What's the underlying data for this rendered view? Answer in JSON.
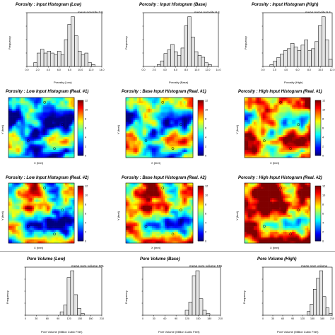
{
  "colors": {
    "bar_fill": "#e4e4e4",
    "bar_stroke": "#000000",
    "separator": "#9a9a9a"
  },
  "colorbar": {
    "ticks": [
      "12",
      "10",
      "8",
      "6",
      "4",
      "2",
      "0"
    ]
  },
  "chart_data": [
    {
      "id": "hist-low",
      "type": "bar",
      "title": "Porosity : Input Histogram (Low)",
      "annotation": "mean porosity 7.5",
      "xlabel": "Porosity (Low)",
      "ylabel": "Frequency",
      "xticks": [
        "0.0",
        "2.0",
        "4.0",
        "6.0",
        "8.0",
        "10.0",
        "12.0",
        "14.0"
      ],
      "values": [
        0,
        0,
        2,
        7,
        9,
        7,
        8,
        7,
        6,
        8,
        6,
        14,
        22,
        26,
        16,
        8,
        6,
        7,
        2,
        1,
        0,
        0
      ]
    },
    {
      "id": "hist-base",
      "type": "bar",
      "title": "Porosity : Input Histogram (Base)",
      "annotation": "mean porosity 8.4",
      "xlabel": "Porosity (Base)",
      "ylabel": "Frequency",
      "xticks": [
        "0.0",
        "2.0",
        "4.0",
        "6.0",
        "8.0",
        "10.0",
        "12.0",
        "14.0"
      ],
      "values": [
        0,
        0,
        0,
        0,
        1,
        3,
        7,
        9,
        12,
        8,
        6,
        10,
        22,
        27,
        16,
        8,
        6,
        5,
        2,
        1,
        0,
        0
      ]
    },
    {
      "id": "hist-high",
      "type": "bar",
      "title": "Porosity : Input Histogram (High)",
      "annotation": "mean porosity 9.4",
      "xlabel": "Porosity (High)",
      "ylabel": "Frequency",
      "xticks": [
        "0.0",
        "2.0",
        "4.0",
        "6.0",
        "8.0",
        "10.0",
        "12.0"
      ],
      "values": [
        0,
        0,
        1,
        3,
        5,
        7,
        9,
        10,
        13,
        11,
        9,
        12,
        15,
        9,
        10,
        14,
        23,
        28,
        15,
        4
      ]
    },
    {
      "id": "map-low-1",
      "type": "heatmap",
      "title": "Porosity : Low Input Histogram (Real. #1)",
      "xlabel": "X (feet)",
      "ylabel": "Y (feet)",
      "seed": 11,
      "bias": -0.1
    },
    {
      "id": "map-base-1",
      "type": "heatmap",
      "title": "Porosity : Base Input Histogram (Real. #1)",
      "xlabel": "X (feet)",
      "ylabel": "Y (feet)",
      "seed": 11,
      "bias": 0.05
    },
    {
      "id": "map-high-1",
      "type": "heatmap",
      "title": "Porosity : High Input Histogram (Real. #1)",
      "xlabel": "X (feet)",
      "ylabel": "Y (feet)",
      "seed": 11,
      "bias": 0.28
    },
    {
      "id": "map-low-2",
      "type": "heatmap",
      "title": "Porosity : Low Input Histogram (Real. #2)",
      "xlabel": "X (feet)",
      "ylabel": "Y (feet)",
      "seed": 29,
      "bias": -0.05
    },
    {
      "id": "map-base-2",
      "type": "heatmap",
      "title": "Porosity : Base Input Histogram (Real. #2)",
      "xlabel": "X (feet)",
      "ylabel": "Y (feet)",
      "seed": 29,
      "bias": 0.1
    },
    {
      "id": "map-high-2",
      "type": "heatmap",
      "title": "Porosity : High Input Histogram (Real. #2)",
      "xlabel": "X (feet)",
      "ylabel": "Y (feet)",
      "seed": 29,
      "bias": 0.32
    },
    {
      "id": "pv-low",
      "type": "bar",
      "title": "Pore Volume (Low)",
      "annotation": "mean pore volume 101",
      "xlabel": "Pore Volume (Million Cubic Feet)",
      "ylabel": "Frequency",
      "xticks": [
        "0",
        "30",
        "60",
        "90",
        "120",
        "150",
        "180",
        "210"
      ],
      "values": [
        0,
        0,
        0,
        0,
        0,
        0,
        0,
        0,
        0,
        0,
        2,
        6,
        22,
        26,
        12,
        4,
        1,
        0,
        0,
        0,
        0,
        0
      ]
    },
    {
      "id": "pv-base",
      "type": "bar",
      "title": "Pore Volume (Base)",
      "annotation": "mean pore volume 136",
      "xlabel": "Pore Volume (Million Cubic Feet)",
      "ylabel": "Frequency",
      "xticks": [
        "0",
        "30",
        "60",
        "90",
        "120",
        "150",
        "180",
        "210"
      ],
      "values": [
        0,
        0,
        0,
        0,
        0,
        0,
        0,
        0,
        0,
        0,
        0,
        0,
        3,
        8,
        24,
        27,
        10,
        3,
        1,
        0,
        0,
        0
      ]
    },
    {
      "id": "pv-high",
      "type": "bar",
      "title": "Pore Volume (High)",
      "annotation": "mean pore volume",
      "xlabel": "Pore Volume (Million Cubic Feet)",
      "ylabel": "Frequency",
      "xticks": [
        "0",
        "30",
        "60",
        "90",
        "120",
        "150",
        "180",
        "210"
      ],
      "values": [
        0,
        0,
        0,
        0,
        0,
        0,
        0,
        0,
        0,
        0,
        0,
        0,
        0,
        0,
        2,
        6,
        14,
        20,
        24,
        10,
        4,
        1
      ]
    }
  ]
}
